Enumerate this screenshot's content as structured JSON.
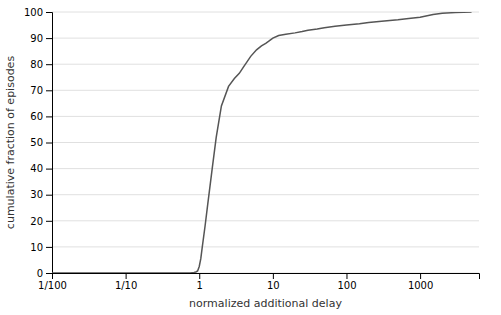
{
  "chart_data": {
    "type": "line",
    "xlabel": "normalized additional delay",
    "ylabel": "cumulative fraction of episodes",
    "log": "x",
    "grid": "y",
    "color": "#555555",
    "xlim": [
      0.01,
      6309.573444801933
    ],
    "ylim": [
      0,
      100
    ],
    "xticks": [
      {
        "value": 0.01,
        "label": "1/100"
      },
      {
        "value": 0.1,
        "label": "1/10"
      },
      1,
      10,
      100,
      1000
    ],
    "yticks": [
      0,
      10,
      20,
      30,
      40,
      50,
      60,
      70,
      80,
      90,
      100
    ],
    "x": [
      0.01,
      0.05,
      0.1,
      0.2,
      0.3,
      0.4,
      0.5,
      0.6,
      0.65,
      0.7,
      0.75,
      0.8,
      0.85,
      0.9,
      0.95,
      1.0,
      1.05,
      1.1,
      1.2,
      1.3,
      1.5,
      1.7,
      2.0,
      2.5,
      3.0,
      3.5,
      4.0,
      5.0,
      6.0,
      7.0,
      8.0,
      9.0,
      10.0,
      12.0,
      15.0,
      20.0,
      25.0,
      30.0,
      40.0,
      50.0,
      70.0,
      100.0,
      150.0,
      200.0,
      300.0,
      500.0,
      700.0,
      1000.0,
      1500.0,
      2000.0,
      3000.0,
      5000.0
    ],
    "values": [
      0.0,
      0.0,
      0.0,
      0.0,
      0.0,
      0.0,
      0.0,
      0.0,
      0.0,
      0.0,
      0.0,
      0.1,
      0.2,
      0.4,
      0.8,
      2.5,
      5.5,
      10.0,
      18.0,
      26.0,
      40.0,
      52.0,
      64.0,
      71.5,
      74.5,
      76.5,
      79.0,
      83.0,
      85.5,
      87.0,
      88.0,
      89.0,
      90.0,
      91.0,
      91.5,
      92.0,
      92.5,
      93.0,
      93.5,
      94.0,
      94.5,
      95.0,
      95.5,
      96.0,
      96.5,
      97.0,
      97.5,
      98.0,
      99.0,
      99.5,
      99.8,
      100.0
    ]
  }
}
